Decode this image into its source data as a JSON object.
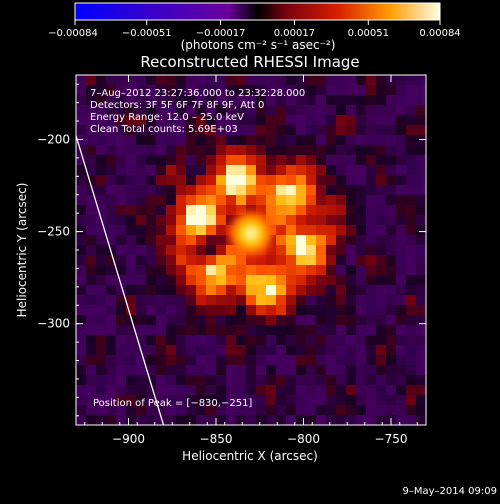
{
  "chart_data": {
    "type": "heatmap",
    "title": "Reconstructed RHESSI Image",
    "xlabel": "Heliocentric X (arcsec)",
    "ylabel": "Heliocentric Y (arcsec)",
    "xlim": [
      -930,
      -730
    ],
    "ylim": [
      -355,
      -165
    ],
    "x_ticks": [
      -900,
      -850,
      -800,
      -750
    ],
    "x_tick_labels": [
      "−900",
      "−850",
      "−800",
      "−750"
    ],
    "y_ticks": [
      -200,
      -250,
      -300
    ],
    "y_tick_labels": [
      "−200",
      "−250",
      "−300"
    ],
    "colorbar": {
      "range": [
        -0.00084,
        0.00084
      ],
      "tick_values": [
        -0.00084,
        -0.00051,
        -0.00017,
        0.00017,
        0.00051,
        0.00084
      ],
      "tick_labels": [
        "−0.00084",
        "−0.00051",
        "−0.00017",
        "0.00017",
        "0.00051",
        "0.00084"
      ],
      "unit_label": "(photons cm⁻² s⁻¹ asec⁻²)"
    },
    "info_lines": [
      "7–Aug–2012 23:27:36.000 to 23:32:28.000",
      "Detectors: 3F 5F 6F 7F 8F 9F, Att 0",
      "Energy Range: 12.0 – 25.0 keV",
      "Clean     Total counts: 5.69E+03"
    ],
    "peak_label": "Position of Peak = [−830,−251]",
    "peak": {
      "x": -830,
      "y": -251
    },
    "limb_line": [
      [
        -930,
        -198
      ],
      [
        -880,
        -355
      ]
    ],
    "footer_date": "9–May–2014 09:09"
  }
}
